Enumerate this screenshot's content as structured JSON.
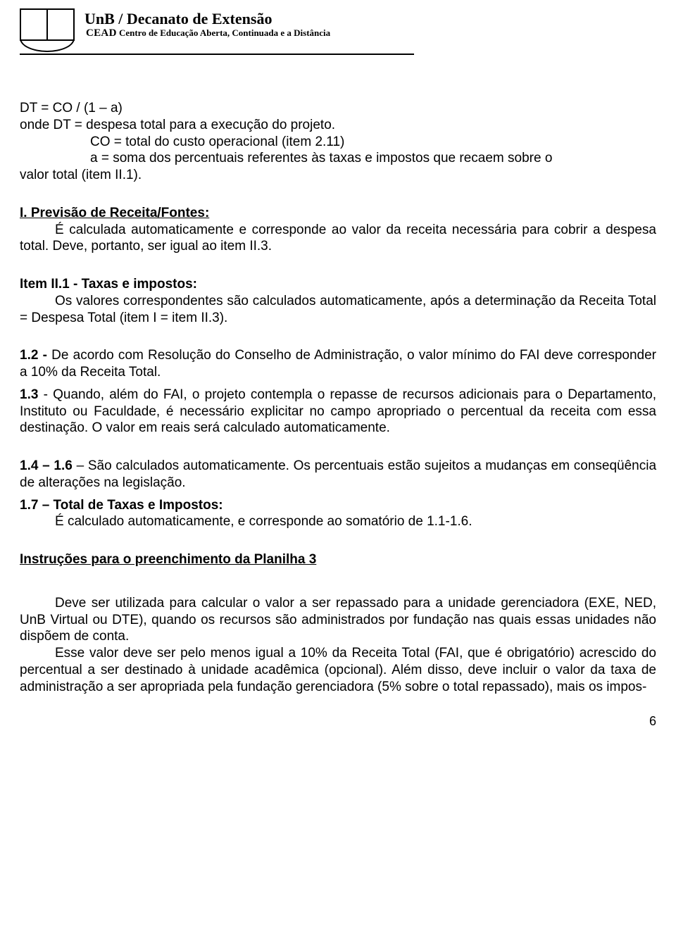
{
  "header": {
    "title_line": "UnB  /  Decanato de Extensão",
    "sub_prefix": "CEAD",
    "sub_rest": "  Centro de Educação Aberta, Continuada e a Distância"
  },
  "body": {
    "formula": "DT = CO / (1 – a)",
    "onde_line": "onde   DT = despesa total para a execução do projeto.",
    "co_line": "CO = total do custo operacional (item 2.11)",
    "a_line_1": "a = soma dos percentuais referentes às taxas e impostos que recaem sobre o",
    "a_line_2": "valor total (item II.1).",
    "sec_I_head": "I. Previsão de Receita/Fontes:",
    "sec_I_text": "É calculada automaticamente e corresponde ao valor da receita necessária para cobrir a despesa total. Deve, portanto, ser igual ao item II.3.",
    "item_II1_head": "Item II.1 - Taxas e impostos:",
    "item_II1_text": "Os valores correspondentes são calculados automaticamente, após a determinação da Receita Total = Despesa Total  (item I = item II.3).",
    "p12_head": "1.2 - ",
    "p12_rest": "De acordo com  Resolução do Conselho de Administração, o valor mínimo do FAI deve corresponder a 10% da Receita Total.",
    "p13_head": "1.3 ",
    "p13_rest": "- Quando, além do FAI, o projeto contempla o repasse de recursos adicionais para o Departamento, Instituto ou Faculdade, é necessário explicitar no campo apropriado o percentual da receita com essa destinação. O valor em reais será calculado automaticamente.",
    "p1416_head": "1.4 – 1.6 ",
    "p1416_rest": "– São calculados automaticamente. Os percentuais estão sujeitos a mudanças em conseqüência de alterações na legislação.",
    "p17_head": "1.7 – Total de Taxas e Impostos:",
    "p17_text": "É calculado automaticamente, e corresponde ao somatório de 1.1-1.6.",
    "instr3_head": "Instruções para o preenchimento da Planilha 3",
    "instr3_p1": "Deve ser utilizada para calcular o valor a ser repassado para a unidade gerenciadora (EXE, NED, UnB Virtual ou DTE), quando os recursos são administrados por fundação nas quais essas unidades não dispõem de conta.",
    "instr3_p2": "Esse valor deve ser pelo menos igual a 10% da Receita Total (FAI, que é obrigatório) acrescido do percentual a ser destinado à unidade acadêmica (opcional). Além disso, deve incluir o valor da taxa de administração a ser apropriada pela fundação gerenciadora (5% sobre o total repassado), mais os impos-"
  },
  "page_number": "6"
}
